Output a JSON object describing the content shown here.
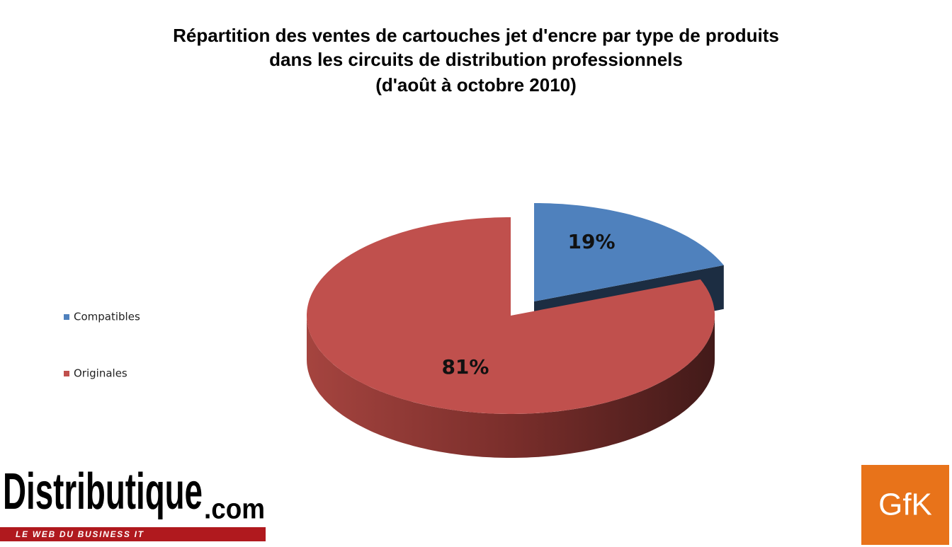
{
  "chart_data": {
    "type": "pie3d",
    "title": [
      "Répartition des ventes de cartouches jet d'encre par type de produits",
      "dans les circuits de distribution professionnels",
      "(d'août à octobre 2010)"
    ],
    "categories": [
      "Compatibles",
      "Originales"
    ],
    "values": [
      19,
      81
    ],
    "value_labels": [
      "19%",
      "81%"
    ],
    "colors": [
      "#4f81bd",
      "#c0504d"
    ],
    "legend": "left"
  },
  "logos": {
    "distributique": {
      "name": "Distributique",
      "suffix": ".com",
      "tagline": "LE WEB DU BUSINESS IT"
    },
    "gfk": "GfK"
  }
}
